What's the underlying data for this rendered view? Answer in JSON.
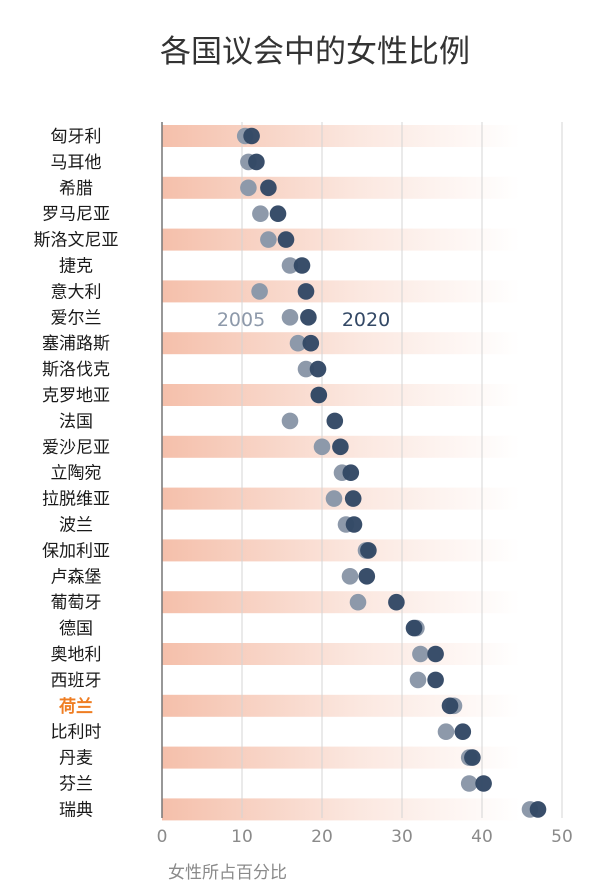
{
  "colors": {
    "band": "#f4bca6",
    "dot2005": "#8d99aa",
    "dot2020": "#334865",
    "highlight": "#ef7d22",
    "grid": "#d4d4d4",
    "axis": "#777777"
  },
  "chart_data": {
    "type": "scatter",
    "title": "各国议会中的女性比例",
    "xlabel": "女性所占百分比",
    "ylabel": "",
    "xlim": [
      0,
      50
    ],
    "xticks": [
      0,
      10,
      20,
      30,
      40,
      50
    ],
    "highlight": "荷兰",
    "countries": [
      "匈牙利",
      "马耳他",
      "希腊",
      "罗马尼亚",
      "斯洛文尼亚",
      "捷克",
      "意大利",
      "爱尔兰",
      "塞浦路斯",
      "斯洛伐克",
      "克罗地亚",
      "法国",
      "爱沙尼亚",
      "立陶宛",
      "拉脱维亚",
      "波兰",
      "保加利亚",
      "卢森堡",
      "葡萄牙",
      "德国",
      "奥地利",
      "西班牙",
      "荷兰",
      "比利时",
      "丹麦",
      "芬兰",
      "瑞典"
    ],
    "series": [
      {
        "name": "2005",
        "values": [
          10.4,
          10.8,
          10.8,
          12.3,
          13.3,
          16.0,
          12.2,
          16.0,
          17.0,
          18.0,
          19.6,
          16.0,
          20.0,
          22.5,
          21.5,
          23.0,
          25.5,
          23.5,
          24.5,
          31.8,
          32.3,
          32.0,
          36.5,
          35.5,
          38.4,
          38.4,
          46.0
        ]
      },
      {
        "name": "2020",
        "values": [
          11.2,
          11.8,
          13.3,
          14.5,
          15.5,
          17.5,
          18.0,
          18.3,
          18.6,
          19.5,
          19.6,
          21.6,
          22.3,
          23.6,
          23.9,
          24.0,
          25.8,
          25.6,
          29.3,
          31.5,
          34.2,
          34.2,
          36.0,
          37.6,
          38.8,
          40.2,
          47.0
        ]
      }
    ]
  }
}
